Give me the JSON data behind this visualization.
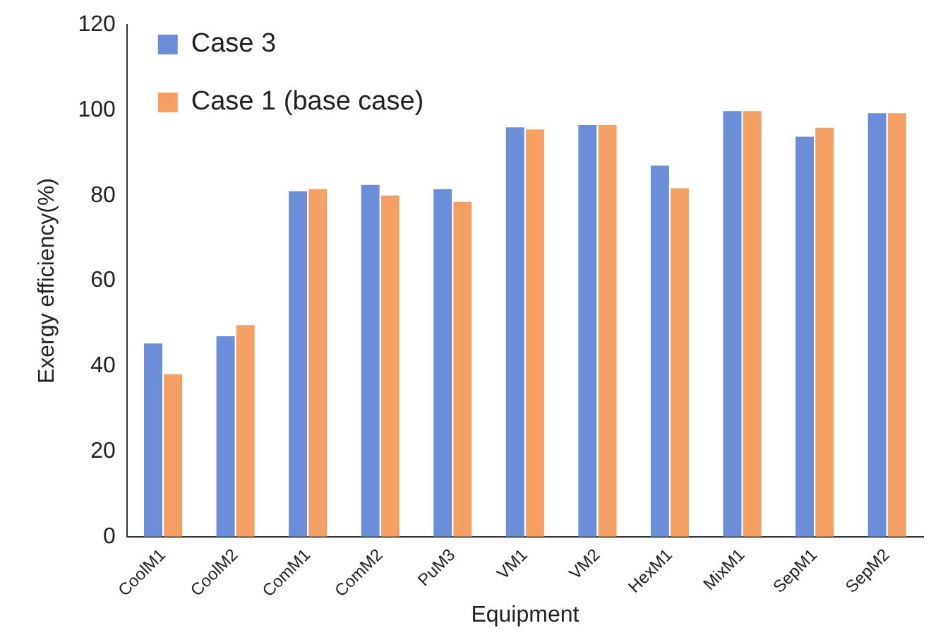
{
  "chart_data": {
    "type": "bar",
    "xlabel": "Equipment",
    "ylabel": "Exergy efficiency(%)",
    "categories": [
      "CoolM1",
      "CoolM2",
      "ComM1",
      "ComM2",
      "PuM3",
      "VM1",
      "VM2",
      "HexM1",
      "MixM1",
      "SepM1",
      "SepM2"
    ],
    "series": [
      {
        "name": "Case 3",
        "color": "#6a8fd8",
        "values": [
          45.3,
          47,
          81,
          82.5,
          81.5,
          96,
          96.5,
          87,
          99.8,
          93.8,
          99.3
        ]
      },
      {
        "name": "Case 1 (base case)",
        "color": "#f4a064",
        "values": [
          38.1,
          49.6,
          81.5,
          80,
          78.5,
          95.5,
          96.5,
          81.7,
          99.8,
          95.9,
          99.3
        ]
      }
    ],
    "ylim": [
      0,
      120
    ],
    "yticks": [
      0,
      20,
      40,
      60,
      80,
      100,
      120
    ],
    "legend": "top left"
  }
}
